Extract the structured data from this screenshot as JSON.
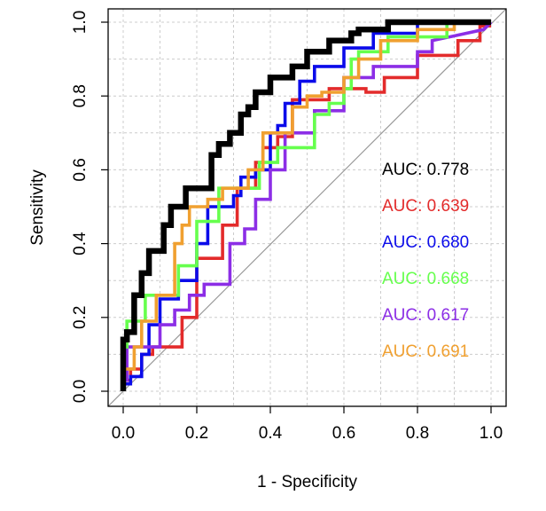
{
  "chart_data": {
    "type": "line",
    "title": "",
    "xlabel": "1 - Specificity",
    "ylabel": "Sensitivity",
    "xlim": [
      0,
      1
    ],
    "ylim": [
      0,
      1
    ],
    "xticks": [
      "0.0",
      "0.2",
      "0.4",
      "0.6",
      "0.8",
      "1.0"
    ],
    "yticks": [
      "0.0",
      "0.2",
      "0.4",
      "0.6",
      "0.8",
      "1.0"
    ],
    "grid": true,
    "grid_style": "dotted",
    "reference_line": "diagonal",
    "legend_position": "right",
    "series": [
      {
        "color": "#000000",
        "auc_label": "AUC: 0.778",
        "x": [
          0,
          0,
          0.01,
          0.01,
          0.03,
          0.03,
          0.05,
          0.05,
          0.07,
          0.07,
          0.11,
          0.11,
          0.13,
          0.13,
          0.17,
          0.17,
          0.24,
          0.24,
          0.26,
          0.26,
          0.29,
          0.29,
          0.32,
          0.32,
          0.34,
          0.34,
          0.36,
          0.36,
          0.4,
          0.4,
          0.46,
          0.46,
          0.5,
          0.5,
          0.56,
          0.56,
          0.62,
          0.62,
          0.64,
          0.64,
          0.72,
          0.72,
          0.8,
          0.8,
          1.0
        ],
        "y": [
          0,
          0.14,
          0.14,
          0.16,
          0.16,
          0.26,
          0.26,
          0.32,
          0.32,
          0.38,
          0.38,
          0.45,
          0.45,
          0.5,
          0.5,
          0.55,
          0.55,
          0.64,
          0.64,
          0.67,
          0.67,
          0.7,
          0.7,
          0.75,
          0.75,
          0.77,
          0.77,
          0.81,
          0.81,
          0.85,
          0.85,
          0.88,
          0.88,
          0.92,
          0.92,
          0.95,
          0.95,
          0.97,
          0.97,
          0.98,
          0.98,
          1.0,
          1.0,
          1.0,
          1.0
        ]
      },
      {
        "color": "#e32b2b",
        "auc_label": "AUC: 0.639",
        "x": [
          0,
          0,
          0.02,
          0.02,
          0.05,
          0.05,
          0.08,
          0.08,
          0.11,
          0.11,
          0.16,
          0.16,
          0.2,
          0.2,
          0.27,
          0.27,
          0.31,
          0.31,
          0.36,
          0.36,
          0.38,
          0.38,
          0.42,
          0.42,
          0.46,
          0.46,
          0.56,
          0.56,
          0.66,
          0.66,
          0.71,
          0.71,
          0.8,
          0.8,
          0.91,
          0.91,
          0.97,
          0.97,
          1.0
        ],
        "y": [
          0,
          0.03,
          0.03,
          0.06,
          0.06,
          0.1,
          0.1,
          0.12,
          0.12,
          0.12,
          0.12,
          0.2,
          0.2,
          0.36,
          0.36,
          0.45,
          0.45,
          0.55,
          0.55,
          0.62,
          0.62,
          0.66,
          0.66,
          0.69,
          0.69,
          0.79,
          0.79,
          0.82,
          0.82,
          0.81,
          0.81,
          0.85,
          0.85,
          0.91,
          0.91,
          0.95,
          0.95,
          0.99,
          0.99
        ]
      },
      {
        "color": "#0b0bea",
        "auc_label": "AUC: 0.680",
        "x": [
          0,
          0.02,
          0.02,
          0.05,
          0.05,
          0.07,
          0.07,
          0.1,
          0.1,
          0.15,
          0.15,
          0.2,
          0.2,
          0.23,
          0.23,
          0.3,
          0.3,
          0.32,
          0.32,
          0.36,
          0.36,
          0.4,
          0.4,
          0.42,
          0.42,
          0.44,
          0.44,
          0.48,
          0.48,
          0.52,
          0.52,
          0.6,
          0.6,
          0.68,
          0.68,
          0.8,
          0.8,
          1.0
        ],
        "y": [
          0.02,
          0.02,
          0.04,
          0.04,
          0.1,
          0.1,
          0.18,
          0.18,
          0.25,
          0.25,
          0.3,
          0.3,
          0.4,
          0.4,
          0.5,
          0.5,
          0.53,
          0.53,
          0.58,
          0.58,
          0.6,
          0.6,
          0.7,
          0.7,
          0.72,
          0.72,
          0.78,
          0.78,
          0.84,
          0.84,
          0.88,
          0.88,
          0.93,
          0.93,
          0.97,
          0.97,
          1.0,
          1.0
        ]
      },
      {
        "color": "#66ff4d",
        "auc_label": "AUC: 0.668",
        "x": [
          0,
          0,
          0.01,
          0.01,
          0.06,
          0.06,
          0.15,
          0.15,
          0.2,
          0.2,
          0.26,
          0.26,
          0.37,
          0.37,
          0.42,
          0.42,
          0.52,
          0.52,
          0.56,
          0.56,
          0.6,
          0.6,
          0.62,
          0.62,
          0.64,
          0.64,
          0.72,
          0.72,
          0.88,
          0.88,
          1.0
        ],
        "y": [
          0,
          0.12,
          0.12,
          0.19,
          0.19,
          0.26,
          0.26,
          0.34,
          0.34,
          0.46,
          0.46,
          0.55,
          0.55,
          0.62,
          0.62,
          0.66,
          0.66,
          0.75,
          0.75,
          0.78,
          0.78,
          0.82,
          0.82,
          0.9,
          0.9,
          0.92,
          0.92,
          0.96,
          0.96,
          1.0,
          1.0
        ]
      },
      {
        "color": "#8c2ee6",
        "auc_label": "AUC: 0.617",
        "x": [
          0,
          0,
          0.01,
          0.01,
          0.1,
          0.1,
          0.14,
          0.14,
          0.18,
          0.18,
          0.22,
          0.22,
          0.29,
          0.29,
          0.33,
          0.33,
          0.36,
          0.36,
          0.4,
          0.4,
          0.44,
          0.44,
          0.52,
          0.52,
          0.6,
          0.6,
          0.68,
          0.68,
          0.8,
          0.8,
          0.84,
          0.84,
          0.98,
          1.0
        ],
        "y": [
          0,
          0.03,
          0.03,
          0.12,
          0.12,
          0.18,
          0.18,
          0.22,
          0.22,
          0.26,
          0.26,
          0.29,
          0.29,
          0.4,
          0.4,
          0.44,
          0.44,
          0.52,
          0.52,
          0.6,
          0.6,
          0.7,
          0.7,
          0.76,
          0.76,
          0.85,
          0.85,
          0.88,
          0.88,
          0.92,
          0.92,
          0.95,
          0.98,
          1.0
        ]
      },
      {
        "color": "#f0a030",
        "auc_label": "AUC: 0.691",
        "x": [
          0,
          0,
          0.03,
          0.03,
          0.05,
          0.05,
          0.09,
          0.09,
          0.14,
          0.14,
          0.16,
          0.16,
          0.18,
          0.18,
          0.23,
          0.23,
          0.27,
          0.27,
          0.34,
          0.34,
          0.38,
          0.38,
          0.46,
          0.46,
          0.5,
          0.5,
          0.54,
          0.54,
          0.6,
          0.6,
          0.64,
          0.64,
          0.7,
          0.7,
          0.8,
          0.8,
          0.9,
          0.9,
          1.0
        ],
        "y": [
          0,
          0.06,
          0.06,
          0.12,
          0.12,
          0.19,
          0.19,
          0.26,
          0.26,
          0.4,
          0.4,
          0.45,
          0.45,
          0.5,
          0.5,
          0.52,
          0.52,
          0.55,
          0.55,
          0.6,
          0.6,
          0.7,
          0.7,
          0.77,
          0.77,
          0.8,
          0.8,
          0.81,
          0.81,
          0.85,
          0.85,
          0.9,
          0.9,
          0.95,
          0.95,
          0.98,
          0.98,
          1.0,
          1.0
        ]
      }
    ]
  }
}
